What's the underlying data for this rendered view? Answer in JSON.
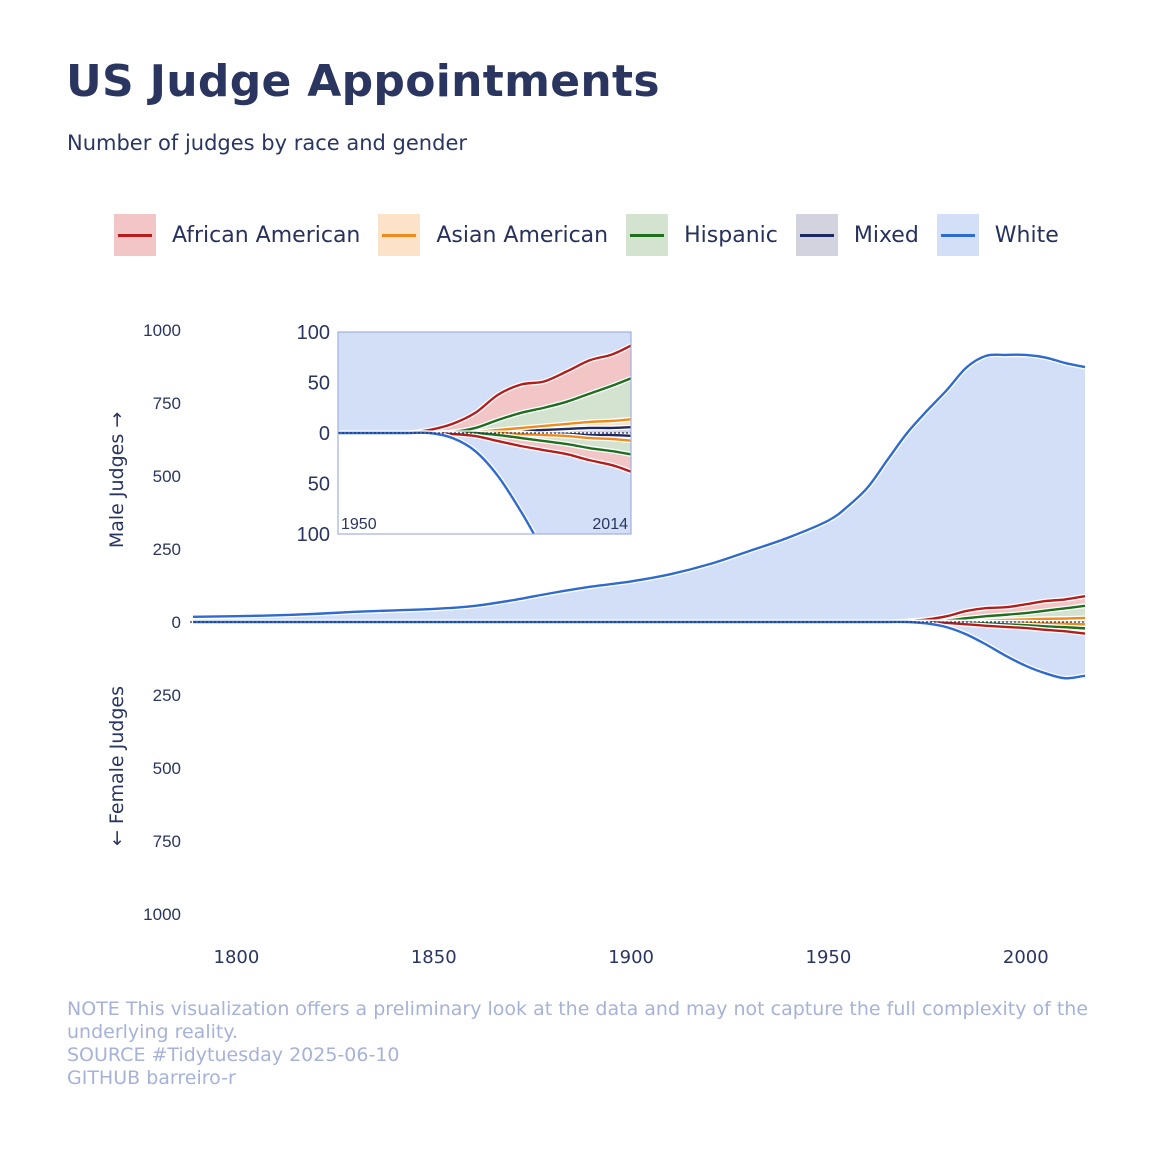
{
  "header": {
    "title": "US Judge Appointments",
    "subtitle": "Number of judges by race and gender"
  },
  "legend": [
    {
      "label": "African American",
      "line_color": "#b51d1d",
      "fill_color": "#f2c6c6"
    },
    {
      "label": "Asian American",
      "line_color": "#f08a1c",
      "fill_color": "#fbe2c8"
    },
    {
      "label": "Hispanic",
      "line_color": "#1e6e1e",
      "fill_color": "#d3e3cf"
    },
    {
      "label": "Mixed",
      "line_color": "#1d2760",
      "fill_color": "#d3d3e0"
    },
    {
      "label": "White",
      "line_color": "#2e6ad0",
      "fill_color": "#d3dff7"
    }
  ],
  "caption": {
    "note": "NOTE This visualization offers a preliminary look at the data and may not capture the full complexity of the underlying reality.",
    "source": "SOURCE #Tidytuesday 2025-06-10",
    "github": "GITHUB barreiro-r"
  },
  "chart_data": [
    {
      "type": "area",
      "name": "main",
      "ylabel_top": "Male Judges →",
      "ylabel_bottom": "← Female Judges",
      "xlim": [
        1789,
        2015
      ],
      "ylim": [
        -1000,
        1000
      ],
      "x_ticks": [
        1800,
        1850,
        1900,
        1950,
        2000
      ],
      "y_ticks": [
        {
          "value": 1000,
          "label": "1000"
        },
        {
          "value": 750,
          "label": "750"
        },
        {
          "value": 500,
          "label": "500"
        },
        {
          "value": 250,
          "label": "250"
        },
        {
          "value": 0,
          "label": "0"
        },
        {
          "value": -250,
          "label": "250"
        },
        {
          "value": -500,
          "label": "500"
        },
        {
          "value": -750,
          "label": "750"
        },
        {
          "value": -1000,
          "label": "1000"
        }
      ],
      "stack_order": [
        "Mixed",
        "Asian American",
        "Hispanic",
        "African American",
        "White"
      ],
      "x": [
        1789,
        1800,
        1810,
        1820,
        1830,
        1840,
        1850,
        1860,
        1870,
        1880,
        1890,
        1900,
        1910,
        1920,
        1930,
        1940,
        1950,
        1955,
        1960,
        1965,
        1970,
        1975,
        1980,
        1985,
        1990,
        1995,
        2000,
        2005,
        2010,
        2015
      ],
      "series_male": [
        {
          "name": "African American",
          "values": [
            0,
            0,
            0,
            0,
            0,
            0,
            0,
            0,
            0,
            0,
            0,
            0,
            0,
            0,
            0,
            0,
            0,
            0,
            0,
            0,
            3,
            8,
            15,
            25,
            28,
            26,
            30,
            33,
            31,
            33
          ]
        },
        {
          "name": "Asian American",
          "values": [
            0,
            0,
            0,
            0,
            0,
            0,
            0,
            0,
            0,
            0,
            0,
            0,
            0,
            0,
            0,
            0,
            0,
            0,
            0,
            0,
            0,
            0,
            1,
            2,
            3,
            4,
            5,
            6,
            7,
            8
          ]
        },
        {
          "name": "Hispanic",
          "values": [
            0,
            0,
            0,
            0,
            0,
            0,
            0,
            0,
            0,
            0,
            0,
            0,
            0,
            0,
            0,
            0,
            0,
            0,
            0,
            0,
            0,
            1,
            4,
            10,
            15,
            18,
            22,
            28,
            35,
            42
          ]
        },
        {
          "name": "Mixed",
          "values": [
            0,
            0,
            0,
            0,
            0,
            0,
            0,
            0,
            0,
            0,
            0,
            0,
            0,
            0,
            0,
            0,
            0,
            0,
            0,
            0,
            0,
            0,
            0,
            1,
            2,
            3,
            4,
            5,
            5,
            6
          ]
        },
        {
          "name": "White",
          "values": [
            18,
            20,
            23,
            28,
            35,
            40,
            45,
            55,
            75,
            100,
            122,
            140,
            165,
            200,
            245,
            292,
            350,
            400,
            465,
            560,
            650,
            720,
            780,
            840,
            870,
            870,
            860,
            840,
            815,
            790
          ]
        }
      ],
      "series_female": [
        {
          "name": "African American",
          "values": [
            0,
            0,
            0,
            0,
            0,
            0,
            0,
            0,
            0,
            0,
            0,
            0,
            0,
            0,
            0,
            0,
            0,
            0,
            0,
            0,
            0,
            1,
            3,
            6,
            8,
            9,
            10,
            12,
            14,
            18
          ]
        },
        {
          "name": "Asian American",
          "values": [
            0,
            0,
            0,
            0,
            0,
            0,
            0,
            0,
            0,
            0,
            0,
            0,
            0,
            0,
            0,
            0,
            0,
            0,
            0,
            0,
            0,
            0,
            0,
            0,
            1,
            1,
            2,
            3,
            4,
            5
          ]
        },
        {
          "name": "Hispanic",
          "values": [
            0,
            0,
            0,
            0,
            0,
            0,
            0,
            0,
            0,
            0,
            0,
            0,
            0,
            0,
            0,
            0,
            0,
            0,
            0,
            0,
            0,
            0,
            0,
            2,
            4,
            6,
            8,
            10,
            12,
            14
          ]
        },
        {
          "name": "Mixed",
          "values": [
            0,
            0,
            0,
            0,
            0,
            0,
            0,
            0,
            0,
            0,
            0,
            0,
            0,
            0,
            0,
            0,
            0,
            0,
            0,
            0,
            0,
            0,
            0,
            0,
            0,
            1,
            1,
            2,
            2,
            3
          ]
        },
        {
          "name": "White",
          "values": [
            0,
            0,
            0,
            0,
            0,
            0,
            0,
            0,
            0,
            0,
            0,
            0,
            0,
            0,
            0,
            0,
            0,
            0,
            0,
            0,
            0,
            4,
            15,
            35,
            65,
            100,
            130,
            150,
            162,
            145
          ]
        }
      ]
    },
    {
      "type": "area",
      "name": "inset",
      "xlim": [
        1950,
        2014
      ],
      "ylim": [
        -100,
        100
      ],
      "x_labels": [
        "1950",
        "2014"
      ],
      "y_ticks": [
        {
          "value": 100,
          "label": "100"
        },
        {
          "value": 50,
          "label": "50"
        },
        {
          "value": 0,
          "label": "0"
        },
        {
          "value": -50,
          "label": "50"
        },
        {
          "value": -100,
          "label": "100"
        }
      ]
    }
  ]
}
